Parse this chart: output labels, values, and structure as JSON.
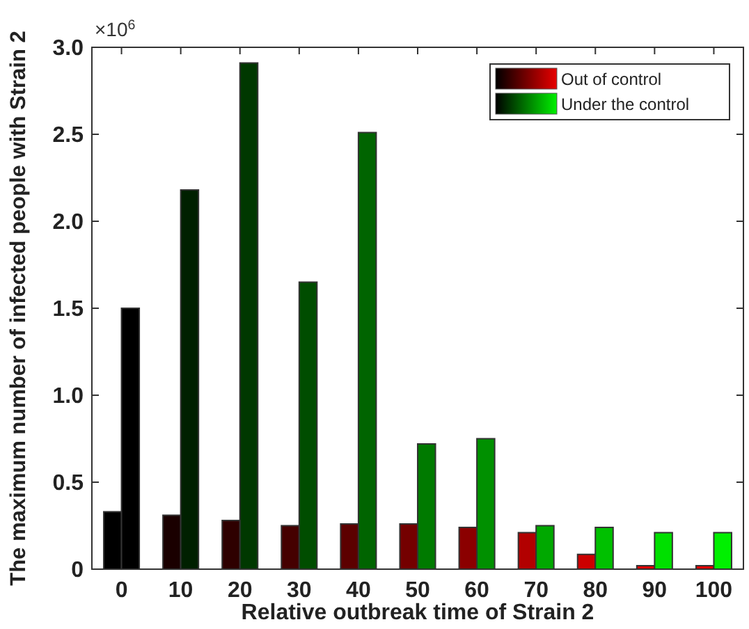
{
  "chart_data": {
    "type": "bar",
    "xlabel": "Relative outbreak time of Strain 2",
    "ylabel": "The maximum number of infected people with Strain 2",
    "categories": [
      "0",
      "10",
      "20",
      "30",
      "40",
      "50",
      "60",
      "70",
      "80",
      "90",
      "100"
    ],
    "series": [
      {
        "name": "Out of control",
        "colors": [
          "#000000",
          "#1a0000",
          "#2e0000",
          "#450000",
          "#5c0000",
          "#740000",
          "#8b0000",
          "#b20000",
          "#cc0000",
          "#e00000",
          "#e80000"
        ],
        "values": [
          0.33,
          0.31,
          0.28,
          0.25,
          0.26,
          0.26,
          0.24,
          0.21,
          0.085,
          0.02,
          0.02
        ]
      },
      {
        "name": "Under the control",
        "colors": [
          "#000000",
          "#002000",
          "#003800",
          "#004d00",
          "#006400",
          "#007a00",
          "#009000",
          "#00a800",
          "#00c000",
          "#00e000",
          "#00f000"
        ],
        "values": [
          1.5,
          2.18,
          2.91,
          1.65,
          2.51,
          0.72,
          0.75,
          0.25,
          0.24,
          0.21,
          0.21
        ]
      }
    ],
    "ylim": [
      0,
      3
    ],
    "yticks": [
      {
        "value": 0,
        "label": "0"
      },
      0.5,
      {
        "value": 1,
        "label": "1.0"
      },
      1.5,
      {
        "value": 2,
        "label": "2.0"
      },
      2.5,
      {
        "value": 3,
        "label": "3.0"
      }
    ],
    "annotations": [
      "×10$^{6}$"
    ],
    "legend": "top right",
    "grid": false
  }
}
